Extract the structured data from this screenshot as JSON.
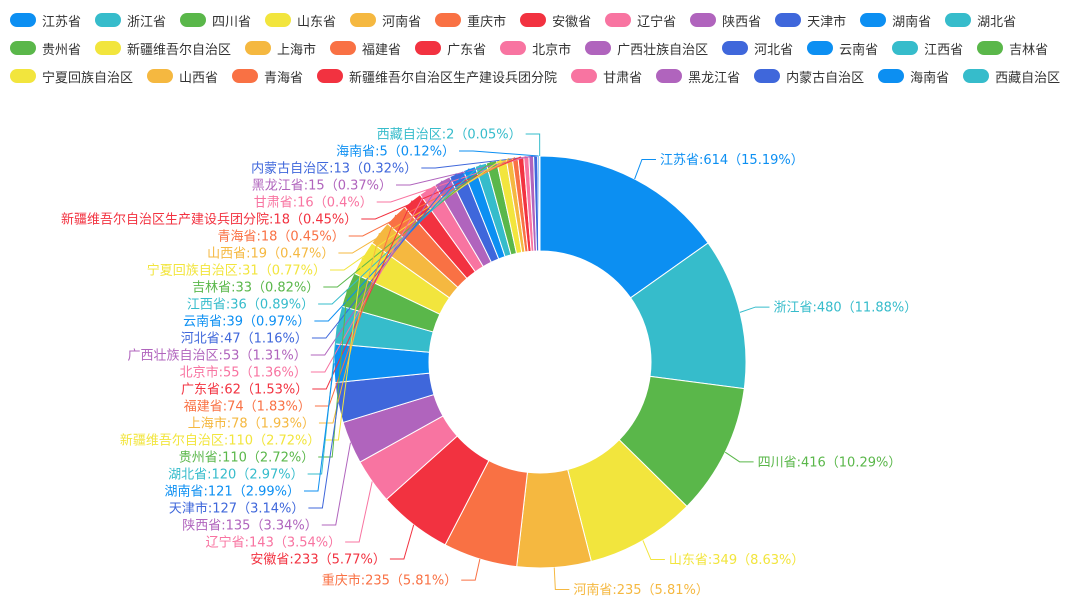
{
  "chart_data": {
    "type": "pie",
    "variant": "donut",
    "legend_position": "top",
    "categories": [
      "江苏省",
      "浙江省",
      "四川省",
      "山东省",
      "河南省",
      "重庆市",
      "安徽省",
      "辽宁省",
      "陕西省",
      "天津市",
      "湖南省",
      "湖北省",
      "贵州省",
      "新疆维吾尔自治区",
      "上海市",
      "福建省",
      "广东省",
      "北京市",
      "广西壮族自治区",
      "河北省",
      "云南省",
      "江西省",
      "吉林省",
      "宁夏回族自治区",
      "山西省",
      "青海省",
      "新疆维吾尔自治区生产建设兵团分院",
      "甘肃省",
      "黑龙江省",
      "内蒙古自治区",
      "海南省",
      "西藏自治区"
    ],
    "values": [
      614,
      480,
      416,
      349,
      235,
      235,
      233,
      143,
      135,
      127,
      121,
      120,
      110,
      110,
      78,
      74,
      62,
      55,
      53,
      47,
      39,
      36,
      33,
      31,
      19,
      18,
      18,
      16,
      15,
      13,
      5,
      2
    ],
    "labels": [
      "江苏省:614（15.19%）",
      "浙江省:480（11.88%）",
      "四川省:416（10.29%）",
      "山东省:349（8.63%）",
      "河南省:235（5.81%）",
      "重庆市:235（5.81%）",
      "安徽省:233（5.77%）",
      "辽宁省:143（3.54%）",
      "陕西省:135（3.34%）",
      "天津市:127（3.14%）",
      "湖南省:121（2.99%）",
      "湖北省:120（2.97%）",
      "贵州省:110（2.72%）",
      "新疆维吾尔自治区:110（2.72%）",
      "上海市:78（1.93%）",
      "福建省:74（1.83%）",
      "广东省:62（1.53%）",
      "北京市:55（1.36%）",
      "广西壮族自治区:53（1.31%）",
      "河北省:47（1.16%）",
      "云南省:39（0.97%）",
      "江西省:36（0.89%）",
      "吉林省:33（0.82%）",
      "宁夏回族自治区:31（0.77%）",
      "山西省:19（0.47%）",
      "青海省:18（0.45%）",
      "新疆维吾尔自治区生产建设兵团分院:18（0.45%）",
      "甘肃省:16（0.4%）",
      "黑龙江省:15（0.37%）",
      "内蒙古自治区:13（0.32%）",
      "海南省:5（0.12%）",
      "西藏自治区:2（0.05%）"
    ],
    "colors": [
      "#0c8ff2",
      "#36bccb",
      "#5ab74a",
      "#f2e53d",
      "#f5b840",
      "#f97144",
      "#f23240",
      "#f874a1",
      "#b064bd",
      "#3f67db"
    ]
  }
}
